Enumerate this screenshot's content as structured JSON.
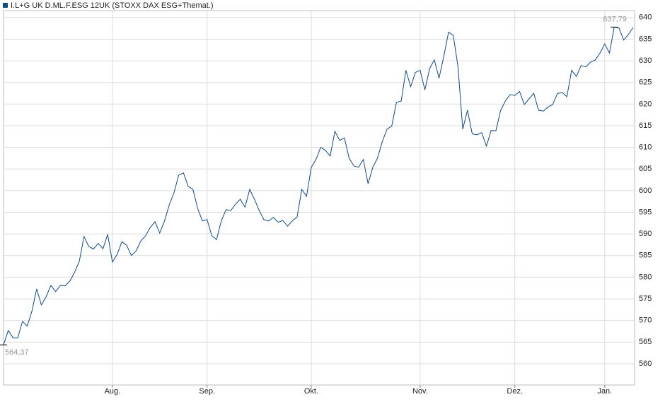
{
  "chart_data": {
    "type": "line",
    "categories": [
      null,
      null,
      null,
      null,
      null,
      null,
      null,
      null,
      null,
      null,
      null,
      null,
      null,
      null,
      null,
      null,
      null,
      null,
      null,
      null,
      null,
      null,
      null,
      "Aug.",
      null,
      null,
      null,
      null,
      null,
      null,
      null,
      null,
      null,
      null,
      null,
      null,
      null,
      null,
      null,
      null,
      null,
      null,
      null,
      "Sep.",
      null,
      null,
      null,
      null,
      null,
      null,
      null,
      null,
      null,
      null,
      null,
      null,
      null,
      null,
      null,
      null,
      null,
      null,
      null,
      null,
      null,
      "Okt.",
      null,
      null,
      null,
      null,
      null,
      null,
      null,
      null,
      null,
      null,
      null,
      null,
      null,
      null,
      null,
      null,
      null,
      null,
      null,
      null,
      null,
      null,
      "Nov.",
      null,
      null,
      null,
      null,
      null,
      null,
      null,
      null,
      null,
      null,
      null,
      null,
      null,
      null,
      null,
      null,
      null,
      null,
      null,
      "Dez.",
      null,
      null,
      null,
      null,
      null,
      null,
      null,
      null,
      null,
      null,
      null,
      null,
      null,
      null,
      null,
      null,
      null,
      null,
      "Jan.",
      null,
      null,
      null,
      null,
      null,
      null
    ],
    "series": [
      {
        "name": "I.L+G UK D.ML.F.ESG 12UK (STOXX DAX ESG+Themat.)",
        "color": "#0e4a8c",
        "values": [
          564.37,
          567.7,
          566.0,
          566.0,
          569.8,
          568.7,
          572.2,
          577.3,
          573.6,
          575.5,
          578.1,
          576.7,
          578.1,
          578.0,
          579.1,
          581.1,
          583.7,
          589.4,
          587.1,
          586.5,
          587.8,
          586.6,
          589.9,
          583.5,
          585.3,
          588.2,
          587.4,
          585.0,
          586.1,
          588.4,
          589.6,
          591.5,
          592.8,
          590.2,
          593.0,
          596.7,
          599.5,
          603.6,
          604.1,
          601.0,
          600.3,
          595.9,
          593.0,
          593.3,
          589.6,
          588.7,
          593.0,
          595.6,
          595.4,
          596.9,
          598.0,
          596.2,
          600.3,
          598.0,
          595.4,
          593.3,
          593.0,
          593.8,
          592.7,
          593.1,
          591.8,
          593.0,
          593.9,
          600.3,
          598.7,
          605.4,
          607.2,
          610.0,
          609.3,
          608.0,
          613.7,
          611.6,
          612.2,
          607.5,
          605.7,
          605.4,
          607.2,
          601.6,
          605.4,
          607.5,
          611.3,
          614.2,
          614.9,
          620.4,
          620.7,
          627.8,
          624.0,
          627.3,
          627.8,
          623.3,
          628.2,
          630.2,
          626.0,
          631.0,
          636.6,
          635.9,
          628.6,
          614.2,
          618.6,
          613.1,
          612.9,
          613.4,
          610.3,
          613.9,
          613.8,
          618.5,
          620.7,
          622.2,
          622.0,
          622.9,
          619.9,
          621.2,
          622.5,
          618.6,
          618.4,
          619.3,
          619.9,
          622.4,
          622.7,
          621.7,
          627.8,
          626.4,
          628.9,
          628.6,
          629.7,
          630.2,
          631.8,
          633.9,
          631.8,
          637.79,
          637.6,
          634.8,
          636.1,
          637.7
        ],
        "value_labels": [
          "564,37",
          null,
          null,
          null,
          null,
          null,
          null,
          null,
          null,
          null,
          null,
          null,
          null,
          null,
          null,
          null,
          null,
          null,
          null,
          null,
          null,
          null,
          null,
          null,
          null,
          null,
          null,
          null,
          null,
          null,
          null,
          null,
          null,
          null,
          null,
          null,
          null,
          null,
          null,
          null,
          null,
          null,
          null,
          null,
          null,
          null,
          null,
          null,
          null,
          null,
          null,
          null,
          null,
          null,
          null,
          null,
          null,
          null,
          null,
          null,
          null,
          null,
          null,
          null,
          null,
          null,
          null,
          null,
          null,
          null,
          null,
          null,
          null,
          null,
          null,
          null,
          null,
          null,
          null,
          null,
          null,
          null,
          null,
          null,
          null,
          null,
          null,
          null,
          null,
          null,
          null,
          null,
          null,
          null,
          null,
          null,
          null,
          null,
          null,
          null,
          null,
          null,
          null,
          null,
          null,
          null,
          null,
          null,
          null,
          null,
          null,
          null,
          null,
          null,
          null,
          null,
          null,
          null,
          null,
          null,
          null,
          null,
          null,
          null,
          null,
          null,
          null,
          null,
          null,
          "637,79",
          null,
          null,
          null,
          null
        ]
      }
    ],
    "ylim": [
      555.1,
      641.6
    ],
    "yticks": [
      560,
      565,
      570,
      575,
      580,
      585,
      590,
      595,
      600,
      605,
      610,
      615,
      620,
      625,
      630,
      635,
      640
    ],
    "grid": true
  }
}
